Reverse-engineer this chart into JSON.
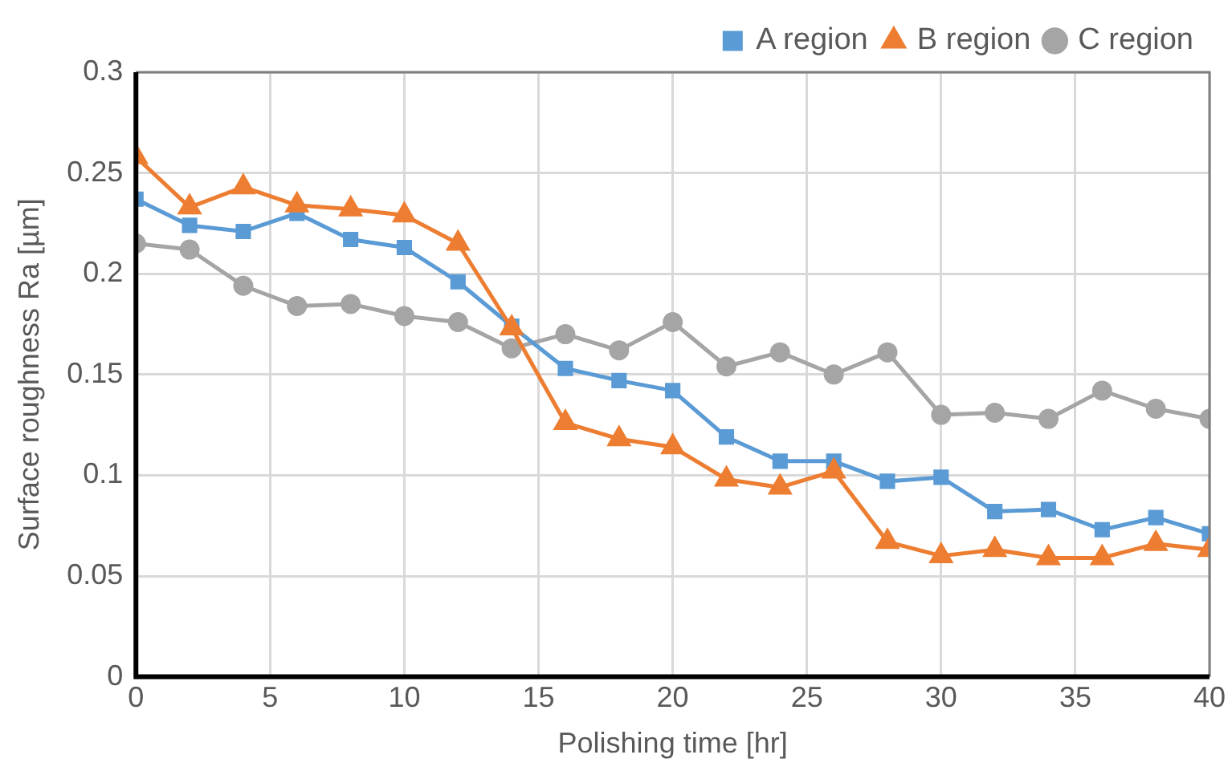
{
  "chart_data": {
    "type": "line",
    "xlabel": "Polishing time [hr]",
    "ylabel": "Surface roughness Ra [µm]",
    "x": [
      0,
      2,
      4,
      6,
      8,
      10,
      12,
      14,
      16,
      18,
      20,
      22,
      24,
      26,
      28,
      30,
      32,
      34,
      36,
      38,
      40
    ],
    "series": [
      {
        "name": "A region",
        "color": "#5b9bd5",
        "marker": "square",
        "values": [
          0.237,
          0.224,
          0.221,
          0.23,
          0.217,
          0.213,
          0.196,
          0.174,
          0.153,
          0.147,
          0.142,
          0.119,
          0.107,
          0.107,
          0.097,
          0.099,
          0.082,
          0.083,
          0.073,
          0.079,
          0.071
        ]
      },
      {
        "name": "B region",
        "color": "#ed7d31",
        "marker": "triangle",
        "values": [
          0.258,
          0.233,
          0.243,
          0.234,
          0.232,
          0.229,
          0.215,
          0.173,
          0.126,
          0.118,
          0.114,
          0.098,
          0.094,
          0.102,
          0.067,
          0.06,
          0.063,
          0.059,
          0.059,
          0.066,
          0.063
        ]
      },
      {
        "name": "C region",
        "color": "#a5a5a5",
        "marker": "circle",
        "values": [
          0.215,
          0.212,
          0.194,
          0.184,
          0.185,
          0.179,
          0.176,
          0.163,
          0.17,
          0.162,
          0.176,
          0.154,
          0.161,
          0.15,
          0.161,
          0.13,
          0.131,
          0.128,
          0.142,
          0.133,
          0.128
        ]
      }
    ],
    "xlim": [
      0,
      40
    ],
    "xticks": [
      0,
      5,
      10,
      15,
      20,
      25,
      30,
      35,
      40
    ],
    "ylim": [
      0,
      0.3
    ],
    "yticks": [
      0,
      0.05,
      0.1,
      0.15,
      0.2,
      0.25,
      0.3
    ],
    "grid": true,
    "legend": "top right",
    "line_style": "solid"
  }
}
